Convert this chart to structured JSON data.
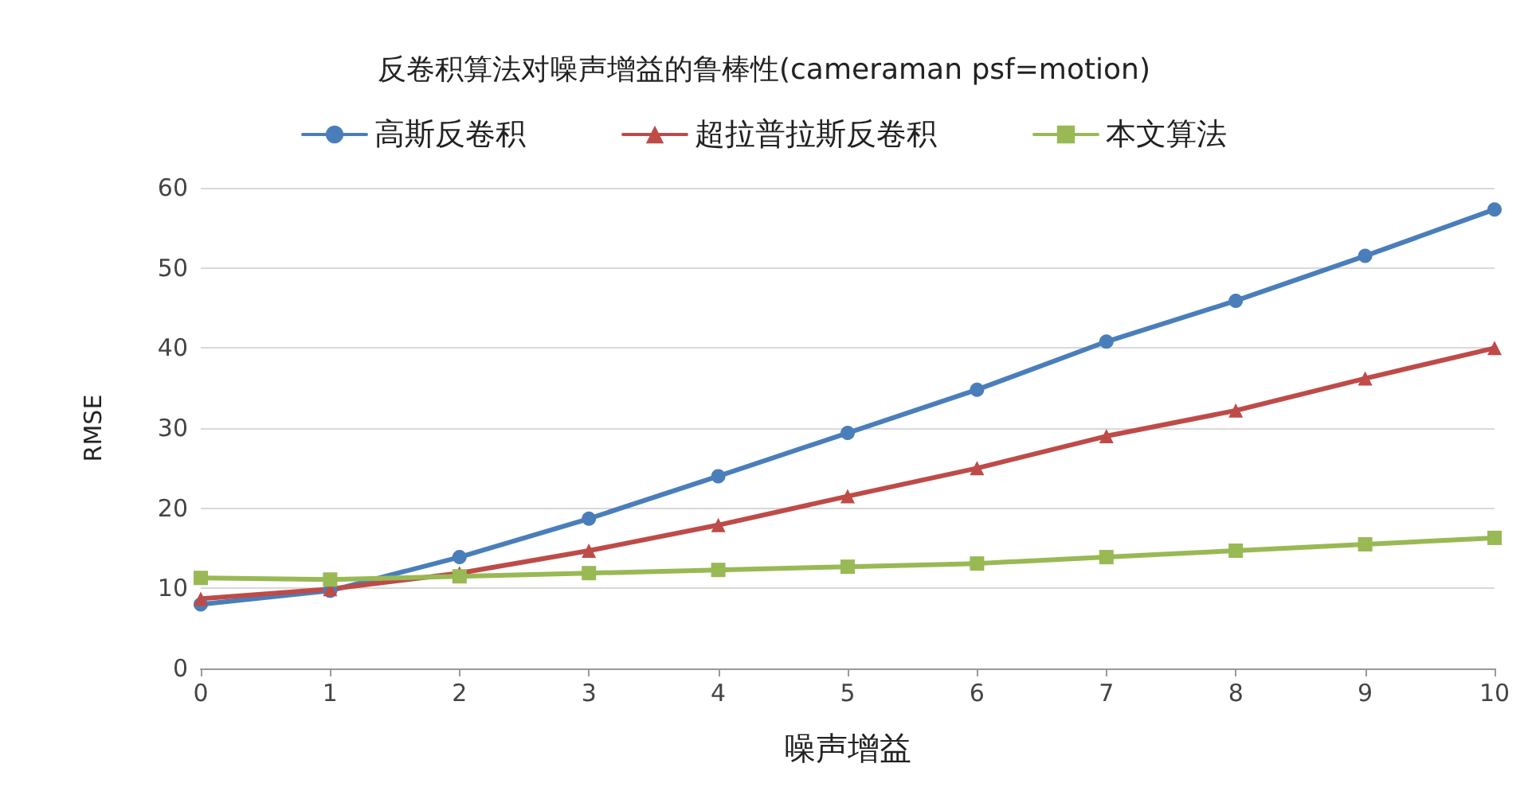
{
  "chart_data": {
    "type": "line",
    "title": "反卷积算法对噪声增益的鲁棒性(cameraman psf=motion)",
    "xlabel": "噪声增益",
    "ylabel": "RMSE",
    "x": [
      0,
      1,
      2,
      3,
      4,
      5,
      6,
      7,
      8,
      9,
      10
    ],
    "xlim": [
      0,
      10
    ],
    "xticks": [
      0,
      1,
      2,
      3,
      4,
      5,
      6,
      7,
      8,
      9,
      10
    ],
    "ylim": [
      0,
      60
    ],
    "yticks": [
      0,
      10,
      20,
      30,
      40,
      50,
      60
    ],
    "grid": "y",
    "legend": "top",
    "line_style": "solid",
    "series": [
      {
        "name": "高斯反卷积",
        "color": "#4a7ebb",
        "marker": "circle",
        "values": [
          8.0,
          9.7,
          13.9,
          18.7,
          24.0,
          29.4,
          34.8,
          40.8,
          45.9,
          51.5,
          57.3
        ]
      },
      {
        "name": "超拉普拉斯反卷积",
        "color": "#be4b48",
        "marker": "triangle",
        "values": [
          8.7,
          9.9,
          11.9,
          14.7,
          17.9,
          21.5,
          25.0,
          29.0,
          32.2,
          36.2,
          40.0
        ]
      },
      {
        "name": "本文算法",
        "color": "#98b954",
        "marker": "square",
        "values": [
          11.3,
          11.1,
          11.5,
          11.9,
          12.3,
          12.7,
          13.1,
          13.9,
          14.7,
          15.5,
          16.3
        ]
      }
    ]
  }
}
